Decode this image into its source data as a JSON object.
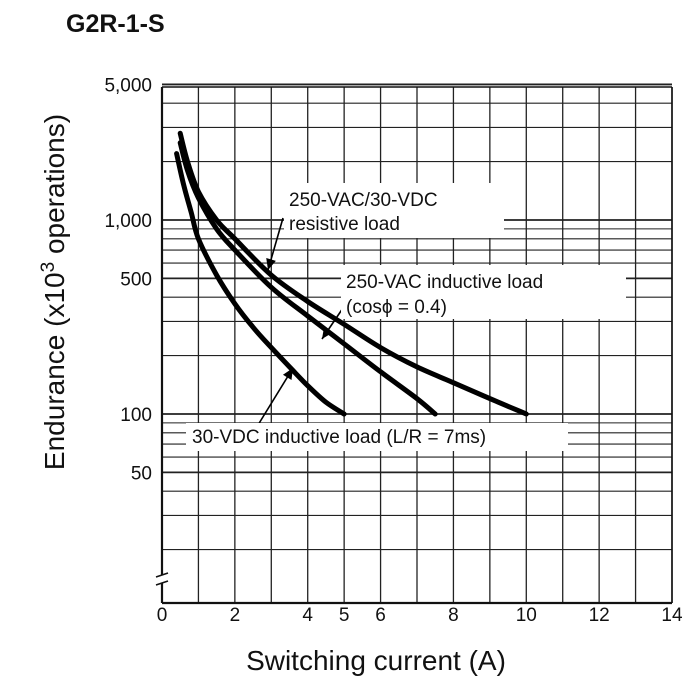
{
  "chart_data": {
    "type": "line",
    "title": "G2R-1-S",
    "xlabel": "Switching current (A)",
    "ylabel_main": "Endurance (x10",
    "ylabel_sup": "3",
    "ylabel_end": " operations)",
    "x_scale": "linear",
    "y_scale": "log",
    "xlim": [
      0,
      14
    ],
    "ylim": [
      10,
      5000
    ],
    "grid": true,
    "x_ticks": [
      {
        "value": 0,
        "label": "0"
      },
      {
        "value": 2,
        "label": "2"
      },
      {
        "value": 4,
        "label": "4"
      },
      {
        "value": 5,
        "label": "5"
      },
      {
        "value": 6,
        "label": "6"
      },
      {
        "value": 8,
        "label": "8"
      },
      {
        "value": 10,
        "label": "10"
      },
      {
        "value": 12,
        "label": "12"
      },
      {
        "value": 14,
        "label": "14"
      }
    ],
    "y_ticks": [
      {
        "value": 5000,
        "label": "5,000"
      },
      {
        "value": 1000,
        "label": "1,000"
      },
      {
        "value": 500,
        "label": "500"
      },
      {
        "value": 100,
        "label": "100"
      },
      {
        "value": 50,
        "label": "50"
      }
    ],
    "series": [
      {
        "name": "250-VAC/30-VDC resistive load",
        "x": [
          0.5,
          0.7,
          1,
          1.5,
          2,
          3,
          4,
          5,
          6,
          7,
          8,
          9,
          10
        ],
        "y": [
          2800,
          2000,
          1400,
          1000,
          800,
          520,
          380,
          290,
          220,
          175,
          145,
          120,
          100
        ]
      },
      {
        "name": "250-VAC inductive load (cosϕ = 0.4)",
        "x": [
          0.5,
          0.7,
          1,
          1.5,
          2,
          3,
          4,
          5,
          6,
          7,
          7.5
        ],
        "y": [
          2500,
          1800,
          1300,
          900,
          700,
          450,
          320,
          230,
          165,
          120,
          100
        ]
      },
      {
        "name": "30-VDC inductive load (L/R = 7ms)",
        "x": [
          0.4,
          0.6,
          0.8,
          1,
          1.5,
          2,
          2.5,
          3,
          3.5,
          4,
          4.5,
          5
        ],
        "y": [
          2200,
          1500,
          1100,
          800,
          520,
          370,
          280,
          220,
          175,
          140,
          115,
          100
        ]
      }
    ],
    "annotations": [
      {
        "lines": [
          "250-VAC/30-VDC",
          "resistive load"
        ]
      },
      {
        "lines": [
          "250-VAC inductive load",
          "(cosϕ = 0.4)"
        ]
      },
      {
        "lines": [
          "30-VDC inductive load (L/R = 7ms)"
        ]
      }
    ]
  }
}
